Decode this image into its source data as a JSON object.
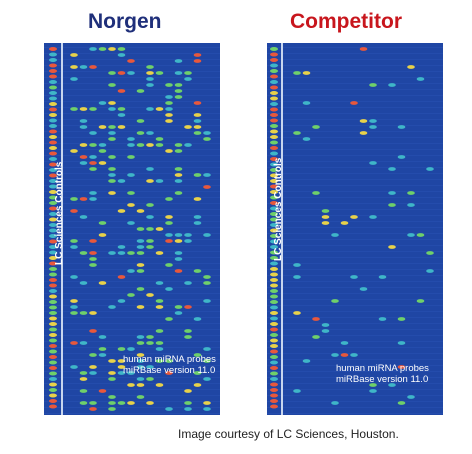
{
  "panels": [
    {
      "title": "Norgen",
      "title_color": "#1f2f7a",
      "control_label": "LC Sciences Controls",
      "probe_line1": "human miRNA probes",
      "probe_line2": "miRBase version 11.0",
      "signal_density": "high"
    },
    {
      "title": "Competitor",
      "title_color": "#c8161d",
      "control_label": "LC Sciences Controls",
      "probe_line1": "human miRNA probes",
      "probe_line2": "miRBase version 11.0",
      "signal_density": "low"
    }
  ],
  "caption": "Image courtesy of LC Sciences, Houston.",
  "colors": {
    "background": "#1f46a4",
    "signal_low": "#3fb6c8",
    "signal_mid": "#6fd06a",
    "signal_high": "#e8d24a",
    "signal_max": "#e8583c"
  }
}
